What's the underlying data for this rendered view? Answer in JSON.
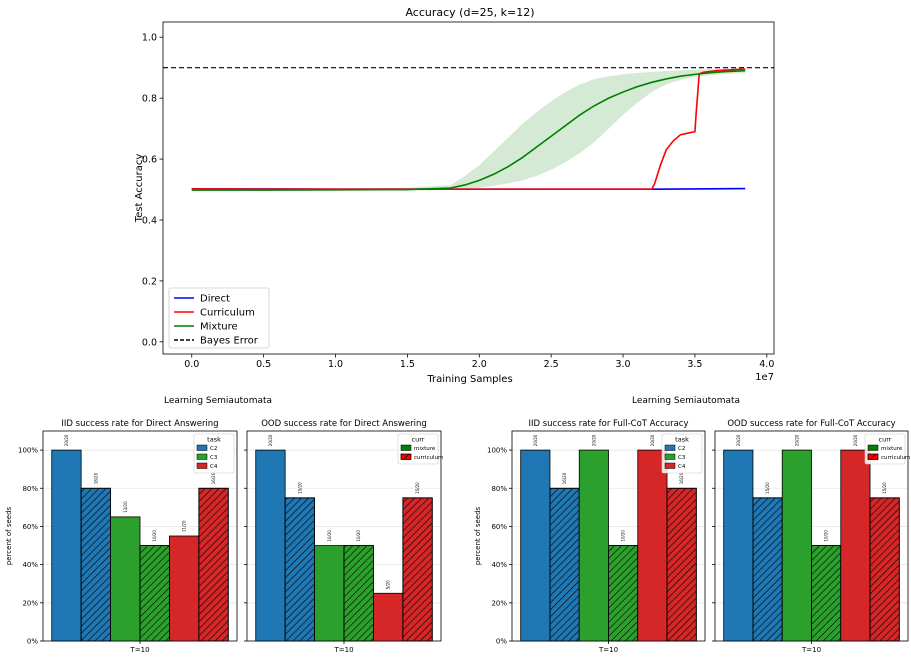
{
  "colors": {
    "direct": "#0000ff",
    "curriculum": "#ff0000",
    "mixture": "#008000",
    "mixture_band": "#b7dcb7",
    "bayes": "#000000",
    "C2": "#1f77b4",
    "C3": "#2ca02c",
    "C4": "#d62728"
  },
  "group_labels": {
    "left": "Learning Semiautomata",
    "right": "Learning Semiautomata"
  },
  "chart_data": [
    {
      "type": "line",
      "title": "Accuracy (d=25, k=12)",
      "xlabel": "Training Samples",
      "ylabel": "Test Accuracy",
      "x_scale_label": "1e7",
      "xlim": [
        -0.2,
        4.05
      ],
      "ylim": [
        -0.04,
        1.05
      ],
      "xticks": [
        0.0,
        0.5,
        1.0,
        1.5,
        2.0,
        2.5,
        3.0,
        3.5,
        4.0
      ],
      "xtick_labels": [
        "0.0",
        "0.5",
        "1.0",
        "1.5",
        "2.0",
        "2.5",
        "3.0",
        "3.5",
        "4.0"
      ],
      "yticks": [
        0.0,
        0.2,
        0.4,
        0.6,
        0.8,
        1.0
      ],
      "ytick_labels": [
        "0.0",
        "0.2",
        "0.4",
        "0.6",
        "0.8",
        "1.0"
      ],
      "hline": {
        "name": "Bayes Error",
        "y": 0.9,
        "style": "dashed"
      },
      "legend": [
        "Direct",
        "Curriculum",
        "Mixture",
        "Bayes Error"
      ],
      "legend_position": "lower-left",
      "series": [
        {
          "name": "Direct",
          "x": [
            0.0,
            0.5,
            1.0,
            1.5,
            2.0,
            2.5,
            3.0,
            3.2,
            3.5,
            3.85
          ],
          "y": [
            0.502,
            0.502,
            0.501,
            0.501,
            0.501,
            0.501,
            0.501,
            0.501,
            0.502,
            0.503
          ]
        },
        {
          "name": "Curriculum",
          "x": [
            0.0,
            0.5,
            1.0,
            1.5,
            2.0,
            2.5,
            3.0,
            3.2,
            3.22,
            3.26,
            3.3,
            3.35,
            3.4,
            3.45,
            3.5,
            3.51,
            3.53,
            3.56,
            3.65,
            3.75,
            3.85
          ],
          "y": [
            0.502,
            0.501,
            0.501,
            0.501,
            0.501,
            0.501,
            0.501,
            0.501,
            0.52,
            0.58,
            0.63,
            0.66,
            0.68,
            0.685,
            0.69,
            0.76,
            0.88,
            0.885,
            0.89,
            0.893,
            0.896
          ]
        },
        {
          "name": "Mixture",
          "x": [
            0.0,
            0.5,
            1.0,
            1.5,
            1.8,
            1.9,
            2.0,
            2.1,
            2.2,
            2.3,
            2.4,
            2.5,
            2.6,
            2.7,
            2.8,
            2.9,
            3.0,
            3.1,
            3.2,
            3.3,
            3.4,
            3.5,
            3.6,
            3.7,
            3.85
          ],
          "y": [
            0.498,
            0.498,
            0.499,
            0.5,
            0.505,
            0.515,
            0.53,
            0.55,
            0.575,
            0.605,
            0.64,
            0.675,
            0.71,
            0.745,
            0.775,
            0.8,
            0.82,
            0.838,
            0.852,
            0.863,
            0.872,
            0.878,
            0.883,
            0.887,
            0.89
          ],
          "band_lower": [
            0.495,
            0.495,
            0.496,
            0.496,
            0.499,
            0.502,
            0.506,
            0.512,
            0.52,
            0.53,
            0.545,
            0.565,
            0.59,
            0.62,
            0.655,
            0.7,
            0.745,
            0.785,
            0.82,
            0.845,
            0.86,
            0.87,
            0.875,
            0.879,
            0.882
          ],
          "band_upper": [
            0.502,
            0.502,
            0.503,
            0.506,
            0.515,
            0.545,
            0.58,
            0.625,
            0.67,
            0.715,
            0.755,
            0.79,
            0.82,
            0.845,
            0.862,
            0.872,
            0.878,
            0.883,
            0.886,
            0.889,
            0.891,
            0.893,
            0.895,
            0.896,
            0.897
          ]
        }
      ]
    },
    {
      "type": "bar",
      "title": "IID success rate for Direct Answering",
      "xlabel": "T=10",
      "ylabel": "percent of seeds",
      "ylim": [
        0,
        110
      ],
      "yticks": [
        0,
        20,
        40,
        60,
        80,
        100
      ],
      "ytick_labels": [
        "0%",
        "20%",
        "40%",
        "60%",
        "80%",
        "100%"
      ],
      "legend_title": "task",
      "legend": [
        "C2",
        "C3",
        "C4"
      ],
      "legend_position": "top-right",
      "bars": [
        {
          "task": "C2",
          "curr": "mixture",
          "value": 100,
          "label": "20/20"
        },
        {
          "task": "C2",
          "curr": "curriculum",
          "value": 80,
          "label": "16/20"
        },
        {
          "task": "C3",
          "curr": "mixture",
          "value": 65,
          "label": "13/20"
        },
        {
          "task": "C3",
          "curr": "curriculum",
          "value": 50,
          "label": "10/20"
        },
        {
          "task": "C4",
          "curr": "mixture",
          "value": 55,
          "label": "11/20"
        },
        {
          "task": "C4",
          "curr": "curriculum",
          "value": 80,
          "label": "16/20"
        }
      ]
    },
    {
      "type": "bar",
      "title": "OOD success rate for Direct Answering",
      "xlabel": "T=10",
      "ylabel": "",
      "ylim": [
        0,
        110
      ],
      "yticks": [
        0,
        20,
        40,
        60,
        80,
        100
      ],
      "legend_title": "curr",
      "legend": [
        "mixture",
        "curriculum"
      ],
      "legend_position": "top-right",
      "bars": [
        {
          "task": "C2",
          "curr": "mixture",
          "value": 100,
          "label": "20/20"
        },
        {
          "task": "C2",
          "curr": "curriculum",
          "value": 75,
          "label": "15/20"
        },
        {
          "task": "C3",
          "curr": "mixture",
          "value": 50,
          "label": "10/20"
        },
        {
          "task": "C3",
          "curr": "curriculum",
          "value": 50,
          "label": "10/20"
        },
        {
          "task": "C4",
          "curr": "mixture",
          "value": 25,
          "label": "5/20"
        },
        {
          "task": "C4",
          "curr": "curriculum",
          "value": 75,
          "label": "15/20"
        }
      ]
    },
    {
      "type": "bar",
      "title": "IID success rate for Full-CoT Accuracy",
      "xlabel": "T=10",
      "ylabel": "percent of seeds",
      "ylim": [
        0,
        110
      ],
      "yticks": [
        0,
        20,
        40,
        60,
        80,
        100
      ],
      "ytick_labels": [
        "0%",
        "20%",
        "40%",
        "60%",
        "80%",
        "100%"
      ],
      "legend_title": "task",
      "legend": [
        "C2",
        "C3",
        "C4"
      ],
      "legend_position": "top-right",
      "bars": [
        {
          "task": "C2",
          "curr": "mixture",
          "value": 100,
          "label": "20/20"
        },
        {
          "task": "C2",
          "curr": "curriculum",
          "value": 80,
          "label": "16/20"
        },
        {
          "task": "C3",
          "curr": "mixture",
          "value": 100,
          "label": "20/20"
        },
        {
          "task": "C3",
          "curr": "curriculum",
          "value": 50,
          "label": "10/20"
        },
        {
          "task": "C4",
          "curr": "mixture",
          "value": 100,
          "label": "20/20"
        },
        {
          "task": "C4",
          "curr": "curriculum",
          "value": 80,
          "label": "16/20"
        }
      ]
    },
    {
      "type": "bar",
      "title": "OOD success rate for Full-CoT Accuracy",
      "xlabel": "T=10",
      "ylabel": "",
      "ylim": [
        0,
        110
      ],
      "yticks": [
        0,
        20,
        40,
        60,
        80,
        100
      ],
      "legend_title": "curr",
      "legend": [
        "mixture",
        "curriculum"
      ],
      "legend_position": "top-right",
      "bars": [
        {
          "task": "C2",
          "curr": "mixture",
          "value": 100,
          "label": "20/20"
        },
        {
          "task": "C2",
          "curr": "curriculum",
          "value": 75,
          "label": "15/20"
        },
        {
          "task": "C3",
          "curr": "mixture",
          "value": 100,
          "label": "20/20"
        },
        {
          "task": "C3",
          "curr": "curriculum",
          "value": 50,
          "label": "10/20"
        },
        {
          "task": "C4",
          "curr": "mixture",
          "value": 100,
          "label": "20/20"
        },
        {
          "task": "C4",
          "curr": "curriculum",
          "value": 75,
          "label": "15/20"
        }
      ]
    }
  ]
}
